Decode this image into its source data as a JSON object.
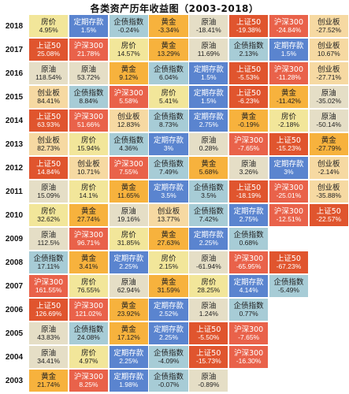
{
  "title": "各类资产历年收益图（2003-2018）",
  "colors": {
    "上证50": "#e0552e",
    "沪深300": "#e9624a",
    "创业板": "#f6d9a2",
    "房价": "#f2e69a",
    "黄金": "#f7b23d",
    "原油": "#e5dec6",
    "定期存款": "#5a84cf",
    "企债指数": "#a7ccd6",
    "empty": "#ffffff"
  },
  "chart_data": {
    "type": "table",
    "rows": [
      {
        "year": "2018",
        "cells": [
          {
            "n": "房价",
            "v": "4.95%"
          },
          {
            "n": "定期存款",
            "v": "1.5%"
          },
          {
            "n": "企债指数",
            "v": "-0.24%"
          },
          {
            "n": "黄金",
            "v": "-3.34%"
          },
          {
            "n": "原油",
            "v": "-18.41%"
          },
          {
            "n": "上证50",
            "v": "-19.38%"
          },
          {
            "n": "沪深300",
            "v": "-24.84%"
          },
          {
            "n": "创业板",
            "v": "-27.52%"
          }
        ]
      },
      {
        "year": "2017",
        "cells": [
          {
            "n": "上证50",
            "v": "25.08%"
          },
          {
            "n": "沪深300",
            "v": "21.78%"
          },
          {
            "n": "房价",
            "v": "14.57%"
          },
          {
            "n": "黄金",
            "v": "13.29%"
          },
          {
            "n": "原油",
            "v": "11.69%"
          },
          {
            "n": "企债指数",
            "v": "2.13%"
          },
          {
            "n": "定期存款",
            "v": "1.5%"
          },
          {
            "n": "创业板",
            "v": "10.67%"
          }
        ]
      },
      {
        "year": "2016",
        "cells": [
          {
            "n": "原油",
            "v": "118.54%"
          },
          {
            "n": "原油",
            "v": "53.72%"
          },
          {
            "n": "黄金",
            "v": "9.12%"
          },
          {
            "n": "企债指数",
            "v": "6.04%"
          },
          {
            "n": "定期存款",
            "v": "1.5%"
          },
          {
            "n": "上证50",
            "v": "-5.53%"
          },
          {
            "n": "沪深300",
            "v": "-11.28%"
          },
          {
            "n": "创业板",
            "v": "-27.71%"
          }
        ]
      },
      {
        "year": "2015",
        "cells": [
          {
            "n": "创业板",
            "v": "84.41%"
          },
          {
            "n": "企债指数",
            "v": "8.84%"
          },
          {
            "n": "沪深300",
            "v": "5.58%"
          },
          {
            "n": "房价",
            "v": "5.41%"
          },
          {
            "n": "定期存款",
            "v": "1.5%"
          },
          {
            "n": "上证50",
            "v": "-6.23%"
          },
          {
            "n": "黄金",
            "v": "-11.42%"
          },
          {
            "n": "原油",
            "v": "-35.02%"
          }
        ]
      },
      {
        "year": "2014",
        "cells": [
          {
            "n": "上证50",
            "v": "63.93%"
          },
          {
            "n": "沪深300",
            "v": "51.66%"
          },
          {
            "n": "创业板",
            "v": "12.83%"
          },
          {
            "n": "企债指数",
            "v": "8.73%"
          },
          {
            "n": "定期存款",
            "v": "2.75%"
          },
          {
            "n": "黄金",
            "v": "-0.19%"
          },
          {
            "n": "房价",
            "v": "-2.18%"
          },
          {
            "n": "原油",
            "v": "-50.14%"
          }
        ]
      },
      {
        "year": "2013",
        "cells": [
          {
            "n": "创业板",
            "v": "82.73%"
          },
          {
            "n": "房价",
            "v": "15.94%"
          },
          {
            "n": "企债指数",
            "v": "4.36%"
          },
          {
            "n": "定期存款",
            "v": "3%"
          },
          {
            "n": "原油",
            "v": "0.28%"
          },
          {
            "n": "沪深300",
            "v": "-7.65%"
          },
          {
            "n": "上证50",
            "v": "-15.23%"
          },
          {
            "n": "黄金",
            "v": "-27.79%"
          }
        ]
      },
      {
        "year": "2012",
        "cells": [
          {
            "n": "上证50",
            "v": "14.84%"
          },
          {
            "n": "创业板",
            "v": "10.71%"
          },
          {
            "n": "沪深300",
            "v": "7.55%"
          },
          {
            "n": "企债指数",
            "v": "7.49%"
          },
          {
            "n": "黄金",
            "v": "5.68%"
          },
          {
            "n": "原油",
            "v": "3.26%"
          },
          {
            "n": "定期存款",
            "v": "3%"
          },
          {
            "n": "创业板",
            "v": "-2.14%"
          }
        ]
      },
      {
        "year": "2011",
        "cells": [
          {
            "n": "原油",
            "v": "15.09%"
          },
          {
            "n": "房价",
            "v": "14.1%"
          },
          {
            "n": "黄金",
            "v": "11.65%"
          },
          {
            "n": "定期存款",
            "v": "3.5%"
          },
          {
            "n": "企债指数",
            "v": "3.5%"
          },
          {
            "n": "上证50",
            "v": "-18.19%"
          },
          {
            "n": "沪深300",
            "v": "-25.01%"
          },
          {
            "n": "创业板",
            "v": "-35.88%"
          }
        ]
      },
      {
        "year": "2010",
        "cells": [
          {
            "n": "房价",
            "v": "32.62%"
          },
          {
            "n": "黄金",
            "v": "27.74%"
          },
          {
            "n": "原油",
            "v": "19.16%"
          },
          {
            "n": "创业板",
            "v": "13.77%"
          },
          {
            "n": "企债指数",
            "v": "7.42%"
          },
          {
            "n": "定期存款",
            "v": "2.75%"
          },
          {
            "n": "沪深300",
            "v": "-12.51%"
          },
          {
            "n": "上证50",
            "v": "-22.57%"
          }
        ]
      },
      {
        "year": "2009",
        "cells": [
          {
            "n": "原油",
            "v": "112.5%"
          },
          {
            "n": "沪深300",
            "v": "96.71%"
          },
          {
            "n": "房价",
            "v": "31.85%"
          },
          {
            "n": "黄金",
            "v": "27.63%"
          },
          {
            "n": "定期存款",
            "v": "2.25%"
          },
          {
            "n": "企债指数",
            "v": "0.68%"
          },
          {
            "n": "empty",
            "v": ""
          },
          {
            "n": "empty",
            "v": ""
          }
        ]
      },
      {
        "year": "2008",
        "cells": [
          {
            "n": "企债指数",
            "v": "17.11%"
          },
          {
            "n": "黄金",
            "v": "3.41%"
          },
          {
            "n": "定期存款",
            "v": "2.25%"
          },
          {
            "n": "房价",
            "v": "2.15%"
          },
          {
            "n": "原油",
            "v": "-61.94%"
          },
          {
            "n": "沪深300",
            "v": "-65.95%"
          },
          {
            "n": "上证50",
            "v": "-67.23%"
          },
          {
            "n": "empty",
            "v": ""
          }
        ]
      },
      {
        "year": "2007",
        "cells": [
          {
            "n": "沪深300",
            "v": "161.55%"
          },
          {
            "n": "房价",
            "v": "76.55%"
          },
          {
            "n": "原油",
            "v": "62.94%"
          },
          {
            "n": "黄金",
            "v": "31.59%"
          },
          {
            "n": "房价",
            "v": "28.25%"
          },
          {
            "n": "定期存款",
            "v": "4.14%"
          },
          {
            "n": "企债指数",
            "v": "-5.49%"
          },
          {
            "n": "empty",
            "v": ""
          }
        ]
      },
      {
        "year": "2006",
        "cells": [
          {
            "n": "上证50",
            "v": "126.69%"
          },
          {
            "n": "沪深300",
            "v": "121.02%"
          },
          {
            "n": "黄金",
            "v": "23.92%"
          },
          {
            "n": "定期存款",
            "v": "2.52%"
          },
          {
            "n": "原油",
            "v": "1.24%"
          },
          {
            "n": "企债指数",
            "v": "0.77%"
          },
          {
            "n": "empty",
            "v": ""
          },
          {
            "n": "empty",
            "v": ""
          }
        ]
      },
      {
        "year": "2005",
        "cells": [
          {
            "n": "原油",
            "v": "43.83%"
          },
          {
            "n": "企债指数",
            "v": "24.08%"
          },
          {
            "n": "黄金",
            "v": "17.12%"
          },
          {
            "n": "定期存款",
            "v": "2.25%"
          },
          {
            "n": "上证50",
            "v": "-5.50%"
          },
          {
            "n": "沪深300",
            "v": "-7.65%"
          },
          {
            "n": "empty",
            "v": ""
          },
          {
            "n": "empty",
            "v": ""
          }
        ]
      },
      {
        "year": "2004",
        "cells": [
          {
            "n": "原油",
            "v": "34.41%"
          },
          {
            "n": "房价",
            "v": "4.97%"
          },
          {
            "n": "定期存款",
            "v": "2.25%"
          },
          {
            "n": "企债指数",
            "v": "-4.09%"
          },
          {
            "n": "上证50",
            "v": "-15.73%"
          },
          {
            "n": "沪深300",
            "v": "-16.30%"
          },
          {
            "n": "empty",
            "v": ""
          },
          {
            "n": "empty",
            "v": ""
          }
        ]
      },
      {
        "year": "2003",
        "cells": [
          {
            "n": "黄金",
            "v": "21.74%"
          },
          {
            "n": "沪深300",
            "v": "8.25%"
          },
          {
            "n": "定期存款",
            "v": "1.98%"
          },
          {
            "n": "企债指数",
            "v": "-0.07%"
          },
          {
            "n": "原油",
            "v": "-0.89%"
          },
          {
            "n": "empty",
            "v": ""
          },
          {
            "n": "empty",
            "v": ""
          },
          {
            "n": "empty",
            "v": ""
          }
        ]
      }
    ]
  }
}
